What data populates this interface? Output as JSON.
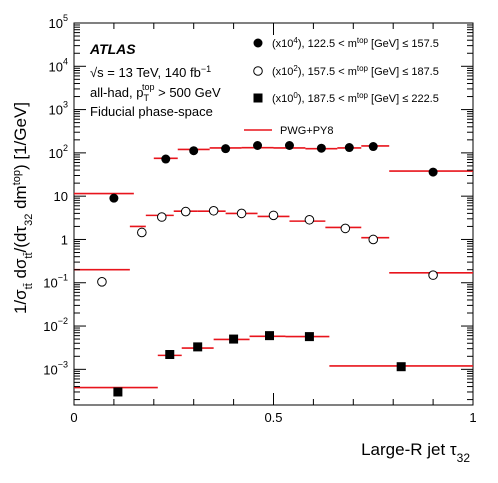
{
  "chart_data": {
    "type": "scatter",
    "xlabel": "Large-R jet τ",
    "xlabel_sub": "32",
    "ylabel": "1/σ_tt̄ dσ_tt̄/(dτ_32 dm^top) [1/GeV]",
    "ylabel_parts": {
      "prefix": "1/σ",
      "sub1": "tt̄",
      "mid": " dσ",
      "sub2": "tt̄",
      "frac": "/(dτ",
      "sub3": "32",
      "dm": " dm",
      "sup": "top",
      "end": ")  [1/GeV]"
    },
    "xlim": [
      0,
      1
    ],
    "ylim": [
      0.00015,
      100000
    ],
    "yscale": "log",
    "x_ticks": [
      {
        "value": 0,
        "label": "0"
      },
      {
        "value": 0.5,
        "label": "0.5"
      },
      {
        "value": 1,
        "label": "1"
      }
    ],
    "y_ticks": [
      {
        "value": 0.001,
        "base": "10",
        "exp": "−3"
      },
      {
        "value": 0.01,
        "base": "10",
        "exp": "−2"
      },
      {
        "value": 0.1,
        "base": "10",
        "exp": "−1"
      },
      {
        "value": 1,
        "base": "1",
        "exp": ""
      },
      {
        "value": 10,
        "base": "10",
        "exp": ""
      },
      {
        "value": 100,
        "base": "10",
        "exp": "2"
      },
      {
        "value": 1000,
        "base": "10",
        "exp": "3"
      },
      {
        "value": 10000,
        "base": "10",
        "exp": "4"
      },
      {
        "value": 100000,
        "base": "10",
        "exp": "5"
      }
    ],
    "info": {
      "experiment": "ATLAS",
      "energy_line": "√s = 13 TeV, 140  fb",
      "energy_sup": "−1",
      "selection_prefix": "all-had, p",
      "selection_sub": "T",
      "selection_sup": "top",
      "selection_suffix": " > 500 GeV",
      "phase_space": "Fiducial phase-space"
    },
    "series": [
      {
        "name": "(x10^4), 122.5 < m^top [GeV] ≤ 157.5",
        "legend": {
          "pre": "(x10",
          "sup1": "4",
          "mid": "), 122.5 < m",
          "sup2": "top",
          "post": " [GeV] ≤ 157.5"
        },
        "marker": "filled-circle",
        "points": [
          {
            "x": 0.1,
            "y": 9
          },
          {
            "x": 0.23,
            "y": 72
          },
          {
            "x": 0.3,
            "y": 112
          },
          {
            "x": 0.38,
            "y": 125
          },
          {
            "x": 0.46,
            "y": 148
          },
          {
            "x": 0.54,
            "y": 148
          },
          {
            "x": 0.62,
            "y": 128
          },
          {
            "x": 0.69,
            "y": 133
          },
          {
            "x": 0.75,
            "y": 140
          },
          {
            "x": 0.9,
            "y": 36
          }
        ],
        "prediction": [
          {
            "x0": 0,
            "x1": 0.15,
            "y": 11.5
          },
          {
            "x0": 0.2,
            "x1": 0.26,
            "y": 75
          },
          {
            "x0": 0.26,
            "x1": 0.34,
            "y": 120
          },
          {
            "x0": 0.34,
            "x1": 0.42,
            "y": 130
          },
          {
            "x0": 0.42,
            "x1": 0.5,
            "y": 132
          },
          {
            "x0": 0.5,
            "x1": 0.58,
            "y": 130
          },
          {
            "x0": 0.58,
            "x1": 0.66,
            "y": 125
          },
          {
            "x0": 0.66,
            "x1": 0.72,
            "y": 130
          },
          {
            "x0": 0.72,
            "x1": 0.79,
            "y": 145
          },
          {
            "x0": 0.79,
            "x1": 1,
            "y": 38
          }
        ]
      },
      {
        "name": "(x10^2), 157.5 < m^top [GeV] ≤ 187.5",
        "legend": {
          "pre": "(x10",
          "sup1": "2",
          "mid": "), 157.5 < m",
          "sup2": "top",
          "post": " [GeV] ≤ 187.5"
        },
        "marker": "open-circle",
        "points": [
          {
            "x": 0.07,
            "y": 0.105
          },
          {
            "x": 0.17,
            "y": 1.45
          },
          {
            "x": 0.22,
            "y": 3.3
          },
          {
            "x": 0.28,
            "y": 4.4
          },
          {
            "x": 0.35,
            "y": 4.6
          },
          {
            "x": 0.42,
            "y": 4.0
          },
          {
            "x": 0.5,
            "y": 3.6
          },
          {
            "x": 0.59,
            "y": 2.85
          },
          {
            "x": 0.68,
            "y": 1.8
          },
          {
            "x": 0.75,
            "y": 1.0
          },
          {
            "x": 0.9,
            "y": 0.15
          }
        ],
        "prediction": [
          {
            "x0": 0,
            "x1": 0.14,
            "y": 0.2
          },
          {
            "x0": 0.14,
            "x1": 0.18,
            "y": 2.0
          },
          {
            "x0": 0.18,
            "x1": 0.25,
            "y": 3.6
          },
          {
            "x0": 0.25,
            "x1": 0.31,
            "y": 4.5
          },
          {
            "x0": 0.31,
            "x1": 0.38,
            "y": 4.5
          },
          {
            "x0": 0.38,
            "x1": 0.46,
            "y": 4.0
          },
          {
            "x0": 0.46,
            "x1": 0.54,
            "y": 3.4
          },
          {
            "x0": 0.54,
            "x1": 0.63,
            "y": 2.65
          },
          {
            "x0": 0.63,
            "x1": 0.72,
            "y": 1.9
          },
          {
            "x0": 0.72,
            "x1": 0.79,
            "y": 1.1
          },
          {
            "x0": 0.79,
            "x1": 1,
            "y": 0.17
          }
        ]
      },
      {
        "name": "(x10^0), 187.5 < m^top [GeV] ≤ 222.5",
        "legend": {
          "pre": "(x10",
          "sup1": "0",
          "mid": "), 187.5 < m",
          "sup2": "top",
          "post": " [GeV] ≤ 222.5"
        },
        "marker": "filled-square",
        "points": [
          {
            "x": 0.11,
            "y": 0.0003
          },
          {
            "x": 0.24,
            "y": 0.0022
          },
          {
            "x": 0.31,
            "y": 0.0033
          },
          {
            "x": 0.4,
            "y": 0.005
          },
          {
            "x": 0.49,
            "y": 0.006
          },
          {
            "x": 0.59,
            "y": 0.0057
          },
          {
            "x": 0.82,
            "y": 0.00115
          }
        ],
        "prediction": [
          {
            "x0": 0,
            "x1": 0.21,
            "y": 0.00038
          },
          {
            "x0": 0.21,
            "x1": 0.27,
            "y": 0.0021
          },
          {
            "x0": 0.27,
            "x1": 0.35,
            "y": 0.0031
          },
          {
            "x0": 0.35,
            "x1": 0.44,
            "y": 0.0049
          },
          {
            "x0": 0.44,
            "x1": 0.53,
            "y": 0.0058
          },
          {
            "x0": 0.53,
            "x1": 0.64,
            "y": 0.0057
          },
          {
            "x0": 0.64,
            "x1": 1,
            "y": 0.0012
          }
        ]
      }
    ],
    "prediction_legend": "PWG+PY8",
    "prediction_color": "#e8141c",
    "marker_color": "#000000",
    "grid": false,
    "legend_position": "top-right"
  }
}
